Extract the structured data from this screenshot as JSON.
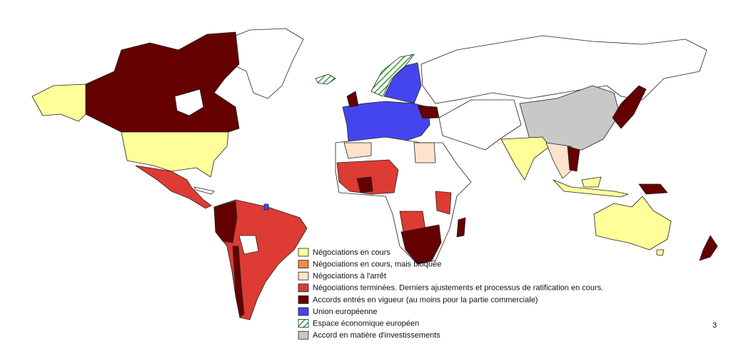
{
  "legend": [
    {
      "label": "Négociations en cours",
      "color": "#ffff99"
    },
    {
      "label": "Négociations en cours, mais bloquée",
      "color": "#f28a45"
    },
    {
      "label": "Négociations à l'arrêt",
      "color": "#fde3cb"
    },
    {
      "label": "Négociations terminées. Derniers ajustements et processus de ratification en cours.",
      "color": "#dd3b34"
    },
    {
      "label": "Accords entrés en vigueur (au moins pour la partie commerciale)",
      "color": "#640000"
    },
    {
      "label": "Union européenne",
      "color": "#4545ee"
    },
    {
      "label": "Espace économique européen",
      "color": "#2ca02c",
      "hatched": true
    },
    {
      "label": "Accord en matière d'investissements",
      "color": "#c8c8c8"
    }
  ],
  "page_number": "3"
}
